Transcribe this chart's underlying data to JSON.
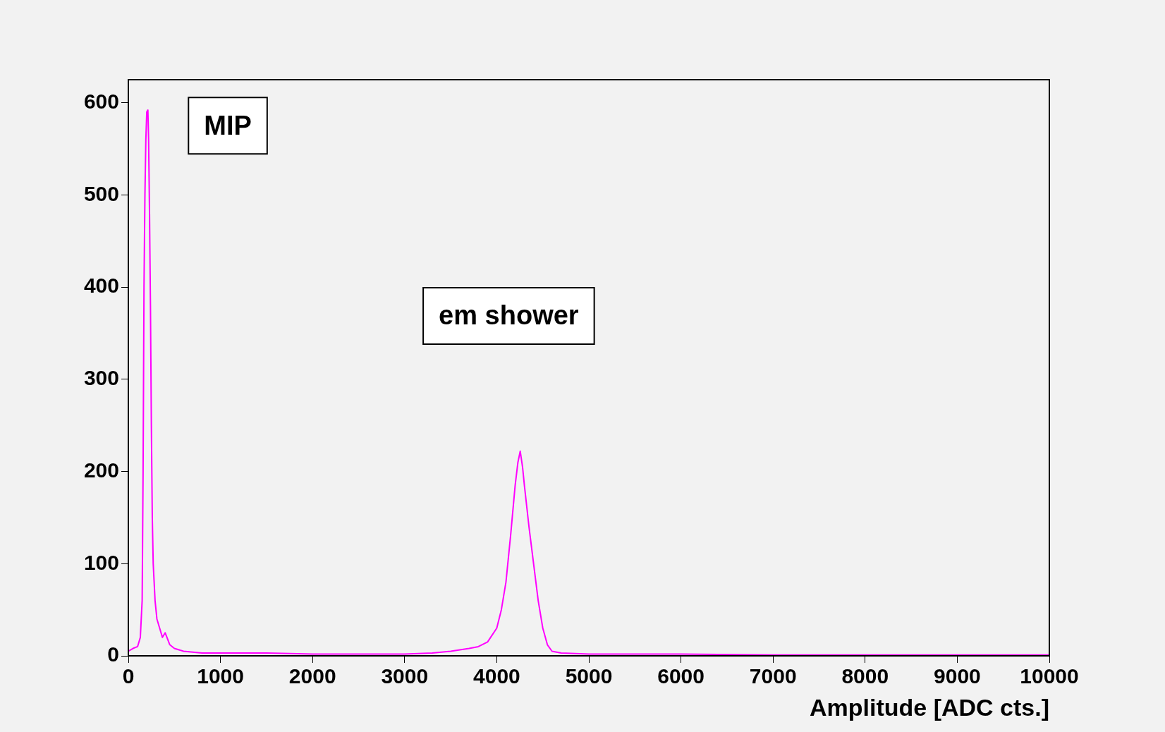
{
  "chart_data": {
    "type": "line",
    "xlabel": "Amplitude [ADC cts.]",
    "series": [
      {
        "color": "#ff00ff",
        "x": [
          0,
          50,
          100,
          130,
          150,
          160,
          170,
          180,
          190,
          200,
          212,
          220,
          230,
          240,
          250,
          260,
          270,
          290,
          310,
          340,
          370,
          400,
          450,
          500,
          600,
          800,
          1000,
          1500,
          2000,
          2500,
          3000,
          3300,
          3500,
          3700,
          3800,
          3900,
          4000,
          4050,
          4100,
          4150,
          4200,
          4230,
          4255,
          4280,
          4300,
          4350,
          4400,
          4450,
          4500,
          4550,
          4600,
          4700,
          5000,
          6000,
          7000,
          8000,
          9000,
          10000
        ],
        "values": [
          5,
          8,
          10,
          20,
          60,
          200,
          400,
          500,
          560,
          590,
          592,
          560,
          480,
          380,
          250,
          150,
          100,
          60,
          40,
          30,
          20,
          25,
          12,
          8,
          5,
          3,
          3,
          3,
          2,
          2,
          2,
          3,
          5,
          8,
          10,
          15,
          30,
          50,
          80,
          130,
          185,
          210,
          222,
          205,
          185,
          140,
          100,
          60,
          30,
          12,
          5,
          3,
          2,
          2,
          1,
          1,
          1,
          1
        ]
      }
    ],
    "xlim": [
      0,
      10000
    ],
    "xticks": [
      0,
      1000,
      2000,
      3000,
      4000,
      5000,
      6000,
      7000,
      8000,
      9000,
      10000
    ],
    "ylim": [
      0,
      625
    ],
    "yticks": [
      0,
      100,
      200,
      300,
      400,
      500,
      600
    ],
    "grid": false,
    "legend": false,
    "marker": "none",
    "line_style": "solid",
    "annotations": [
      "MIP",
      "em shower"
    ]
  }
}
